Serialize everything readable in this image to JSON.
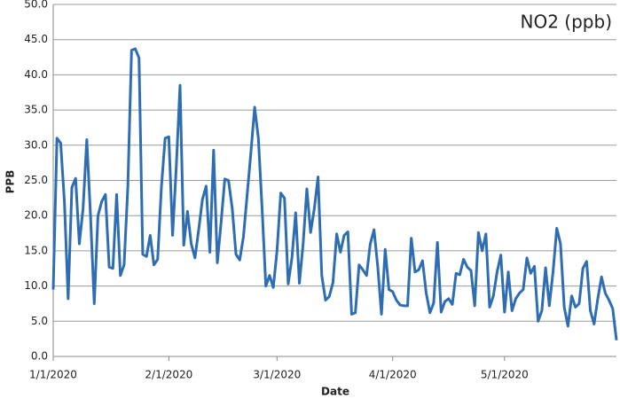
{
  "chart_data": {
    "type": "line",
    "title": "NO2 (ppb)",
    "xlabel": "Date",
    "ylabel": "PPB",
    "x": [
      "2020-01-01",
      "2020-01-02",
      "2020-01-03",
      "2020-01-04",
      "2020-01-05",
      "2020-01-06",
      "2020-01-07",
      "2020-01-08",
      "2020-01-09",
      "2020-01-10",
      "2020-01-11",
      "2020-01-12",
      "2020-01-13",
      "2020-01-14",
      "2020-01-15",
      "2020-01-16",
      "2020-01-17",
      "2020-01-18",
      "2020-01-19",
      "2020-01-20",
      "2020-01-21",
      "2020-01-22",
      "2020-01-23",
      "2020-01-24",
      "2020-01-25",
      "2020-01-26",
      "2020-01-27",
      "2020-01-28",
      "2020-01-29",
      "2020-01-30",
      "2020-01-31",
      "2020-02-01",
      "2020-02-02",
      "2020-02-03",
      "2020-02-04",
      "2020-02-05",
      "2020-02-06",
      "2020-02-07",
      "2020-02-08",
      "2020-02-09",
      "2020-02-10",
      "2020-02-11",
      "2020-02-12",
      "2020-02-13",
      "2020-02-14",
      "2020-02-15",
      "2020-02-16",
      "2020-02-17",
      "2020-02-18",
      "2020-02-19",
      "2020-02-20",
      "2020-02-21",
      "2020-02-22",
      "2020-02-23",
      "2020-02-24",
      "2020-02-25",
      "2020-02-26",
      "2020-02-27",
      "2020-02-28",
      "2020-02-29",
      "2020-03-01",
      "2020-03-02",
      "2020-03-03",
      "2020-03-04",
      "2020-03-05",
      "2020-03-06",
      "2020-03-07",
      "2020-03-08",
      "2020-03-09",
      "2020-03-10",
      "2020-03-11",
      "2020-03-12",
      "2020-03-13",
      "2020-03-14",
      "2020-03-15",
      "2020-03-16",
      "2020-03-17",
      "2020-03-18",
      "2020-03-19",
      "2020-03-20",
      "2020-03-21",
      "2020-03-22",
      "2020-03-23",
      "2020-03-24",
      "2020-03-25",
      "2020-03-26",
      "2020-03-27",
      "2020-03-28",
      "2020-03-29",
      "2020-03-30",
      "2020-03-31",
      "2020-04-01",
      "2020-04-02",
      "2020-04-03",
      "2020-04-04",
      "2020-04-05",
      "2020-04-06",
      "2020-04-07",
      "2020-04-08",
      "2020-04-09",
      "2020-04-10",
      "2020-04-11",
      "2020-04-12",
      "2020-04-13",
      "2020-04-14",
      "2020-04-15",
      "2020-04-16",
      "2020-04-17",
      "2020-04-18",
      "2020-04-19",
      "2020-04-20",
      "2020-04-21",
      "2020-04-22",
      "2020-04-23",
      "2020-04-24",
      "2020-04-25",
      "2020-04-26",
      "2020-04-27",
      "2020-04-28",
      "2020-04-29",
      "2020-04-30",
      "2020-05-01",
      "2020-05-02",
      "2020-05-03",
      "2020-05-04",
      "2020-05-05",
      "2020-05-06",
      "2020-05-07",
      "2020-05-08",
      "2020-05-09",
      "2020-05-10",
      "2020-05-11",
      "2020-05-12",
      "2020-05-13",
      "2020-05-14",
      "2020-05-15",
      "2020-05-16",
      "2020-05-17",
      "2020-05-18",
      "2020-05-19",
      "2020-05-20",
      "2020-05-21",
      "2020-05-22",
      "2020-05-23",
      "2020-05-24",
      "2020-05-25",
      "2020-05-26",
      "2020-05-27",
      "2020-05-28",
      "2020-05-29",
      "2020-05-30",
      "2020-05-31"
    ],
    "series": [
      {
        "name": "NO2",
        "color": "#2f6db3",
        "values": [
          9.5,
          31,
          30.3,
          22,
          8.2,
          24,
          25.3,
          16,
          21,
          30.8,
          20,
          7.5,
          20,
          22,
          23,
          12.7,
          12.5,
          23,
          11.5,
          13,
          24,
          43.5,
          43.7,
          42.4,
          14.5,
          14.2,
          17.2,
          13,
          13.8,
          24,
          31,
          31.2,
          17.2,
          27,
          38.5,
          15.8,
          20.6,
          16,
          14,
          18,
          22.3,
          24.2,
          14.8,
          29.3,
          13.3,
          19,
          25.2,
          25,
          21,
          14.5,
          13.7,
          17,
          23,
          29,
          35.4,
          31,
          21,
          10,
          11.5,
          9.8,
          15,
          23.2,
          22.5,
          10.3,
          14,
          20.4,
          10.4,
          16,
          23.8,
          17.6,
          21,
          25.5,
          11.5,
          8,
          8.5,
          10.5,
          17.4,
          14.8,
          17.2,
          17.7,
          6,
          6.2,
          13,
          12.3,
          11.5,
          16,
          18,
          12.8,
          6,
          15.2,
          9.5,
          9.2,
          8,
          7.3,
          7.2,
          7.2,
          16.8,
          12,
          12.3,
          13.6,
          9,
          6.2,
          7.6,
          16.2,
          6.3,
          7.8,
          8.2,
          7.4,
          11.8,
          11.6,
          13.8,
          12.7,
          12.2,
          7.2,
          17.6,
          15,
          17.4,
          7,
          8.6,
          12,
          14.4,
          6.3,
          12,
          6.5,
          8.2,
          9,
          9.5,
          14,
          11.8,
          12.8,
          5,
          6.5,
          12.6,
          7.2,
          12,
          18.2,
          16,
          7,
          4.3,
          8.6,
          7,
          7.5,
          12.5,
          13.5,
          6.5,
          4.6,
          8.2,
          11.3,
          9,
          8,
          6.8,
          2.3
        ]
      }
    ],
    "xlim": [
      "2020-01-01",
      "2020-05-31"
    ],
    "xticks": [
      {
        "value": "2020-01-01",
        "label": "1/1/2020"
      },
      {
        "value": "2020-02-01",
        "label": "2/1/2020"
      },
      {
        "value": "2020-03-01",
        "label": "3/1/2020"
      },
      {
        "value": "2020-04-01",
        "label": "4/1/2020"
      },
      {
        "value": "2020-05-01",
        "label": "5/1/2020"
      }
    ],
    "ylim": [
      0,
      50
    ],
    "yticks": [
      {
        "value": 0,
        "label": "0.0"
      },
      {
        "value": 5,
        "label": "5.0"
      },
      {
        "value": 10,
        "label": "10.0"
      },
      {
        "value": 15,
        "label": "15.0"
      },
      {
        "value": 20,
        "label": "20.0"
      },
      {
        "value": 25,
        "label": "25.0"
      },
      {
        "value": 30,
        "label": "30.0"
      },
      {
        "value": 35,
        "label": "35.0"
      },
      {
        "value": 40,
        "label": "40.0"
      },
      {
        "value": 45,
        "label": "45.0"
      },
      {
        "value": 50,
        "label": "50.0"
      }
    ],
    "grid": true
  }
}
